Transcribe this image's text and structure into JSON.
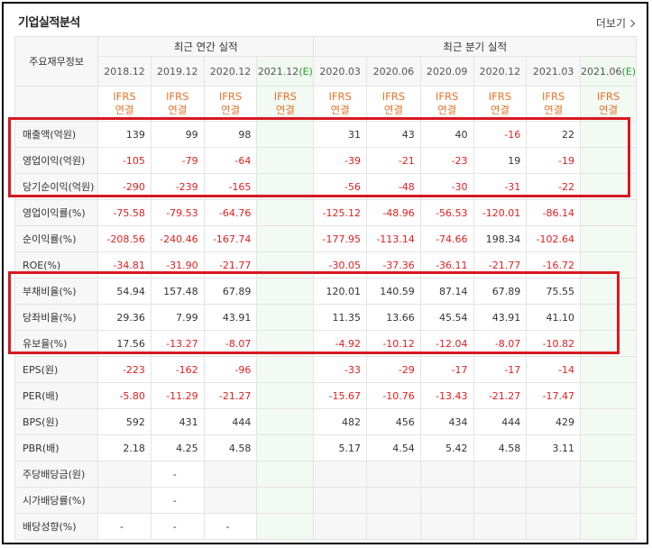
{
  "section_title": "기업실적분석",
  "more_link": "더보기",
  "table": {
    "row_header_label": "주요재무정보",
    "annual_group": "최근 연간 실적",
    "quarter_group": "최근 분기 실적",
    "periods": [
      "2018.12",
      "2019.12",
      "2020.12",
      "2021.12",
      "2020.03",
      "2020.06",
      "2020.09",
      "2020.12",
      "2021.03",
      "2021.06"
    ],
    "estimate_marks": [
      "",
      "",
      "",
      "(E)",
      "",
      "",
      "",
      "",
      "",
      "(E)"
    ],
    "basis_line1": "IFRS",
    "basis_line2": "연결",
    "rows": [
      {
        "label": "매출액(억원)",
        "values": [
          "139",
          "99",
          "98",
          "",
          "31",
          "43",
          "40",
          "-16",
          "22",
          ""
        ]
      },
      {
        "label": "영업이익(억원)",
        "values": [
          "-105",
          "-79",
          "-64",
          "",
          "-39",
          "-21",
          "-23",
          "19",
          "-19",
          ""
        ]
      },
      {
        "label": "당기순이익(억원)",
        "values": [
          "-290",
          "-239",
          "-165",
          "",
          "-56",
          "-48",
          "-30",
          "-31",
          "-22",
          ""
        ]
      },
      {
        "label": "영업이익률(%)",
        "values": [
          "-75.58",
          "-79.53",
          "-64.76",
          "",
          "-125.12",
          "-48.96",
          "-56.53",
          "-120.01",
          "-86.14",
          ""
        ]
      },
      {
        "label": "순이익률(%)",
        "values": [
          "-208.56",
          "-240.46",
          "-167.74",
          "",
          "-177.95",
          "-113.14",
          "-74.66",
          "198.34",
          "-102.64",
          ""
        ]
      },
      {
        "label": "ROE(%)",
        "values": [
          "-34.81",
          "-31.90",
          "-21.77",
          "",
          "-30.05",
          "-37.36",
          "-36.11",
          "-21.77",
          "-16.72",
          ""
        ]
      },
      {
        "label": "부채비율(%)",
        "values": [
          "54.94",
          "157.48",
          "67.89",
          "",
          "120.01",
          "140.59",
          "87.14",
          "67.89",
          "75.55",
          ""
        ]
      },
      {
        "label": "당좌비율(%)",
        "values": [
          "29.36",
          "7.99",
          "43.91",
          "",
          "11.35",
          "13.66",
          "45.54",
          "43.91",
          "41.10",
          ""
        ]
      },
      {
        "label": "유보율(%)",
        "values": [
          "17.56",
          "-13.27",
          "-8.07",
          "",
          "-4.92",
          "-10.12",
          "-12.04",
          "-8.07",
          "-10.82",
          ""
        ]
      },
      {
        "label": "EPS(원)",
        "values": [
          "-223",
          "-162",
          "-96",
          "",
          "-33",
          "-29",
          "-17",
          "-17",
          "-14",
          ""
        ]
      },
      {
        "label": "PER(배)",
        "values": [
          "-5.80",
          "-11.29",
          "-21.27",
          "",
          "-15.67",
          "-10.76",
          "-13.43",
          "-21.27",
          "-17.47",
          ""
        ]
      },
      {
        "label": "BPS(원)",
        "values": [
          "592",
          "431",
          "444",
          "",
          "482",
          "456",
          "434",
          "444",
          "429",
          ""
        ]
      },
      {
        "label": "PBR(배)",
        "values": [
          "2.18",
          "4.25",
          "4.58",
          "",
          "5.17",
          "4.54",
          "5.42",
          "4.58",
          "3.11",
          ""
        ]
      },
      {
        "label": "주당배당금(원)",
        "values": [
          "",
          "-",
          "",
          "",
          "",
          "",
          "",
          "",
          "",
          ""
        ]
      },
      {
        "label": "시가배당률(%)",
        "values": [
          "",
          "-",
          "",
          "",
          "",
          "",
          "",
          "",
          "",
          ""
        ]
      },
      {
        "label": "배당성향(%)",
        "values": [
          "-",
          "-",
          "-",
          "",
          "",
          "",
          "",
          "",
          "",
          ""
        ]
      }
    ]
  },
  "colors": {
    "negative": "#e02020",
    "basis": "#e6742c",
    "estimate_mark": "#27a327",
    "highlight_box": "#d71920"
  }
}
